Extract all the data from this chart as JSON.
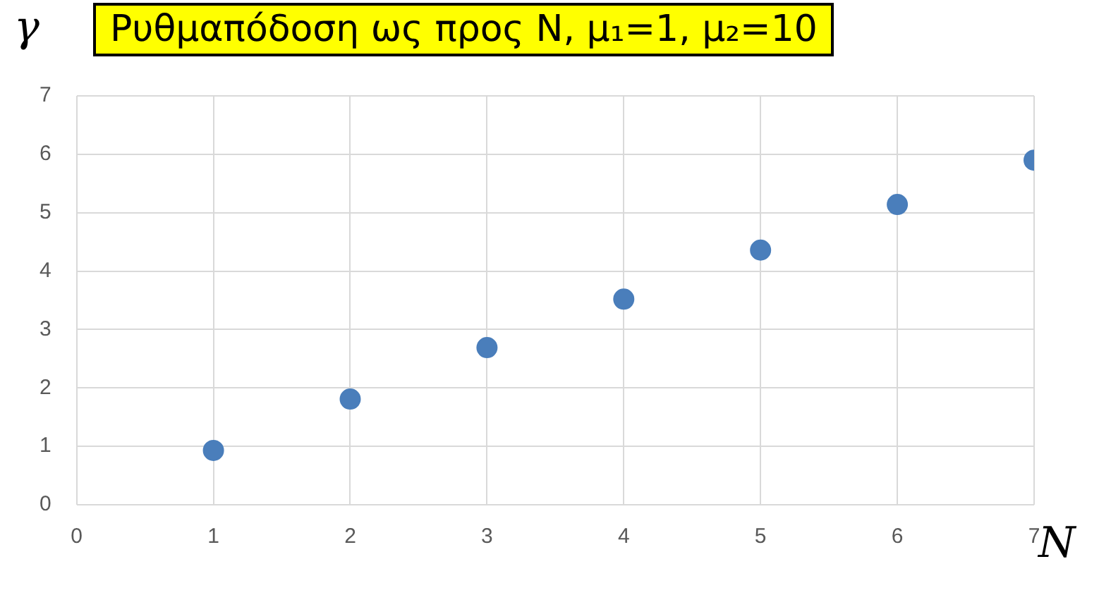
{
  "chart_data": {
    "type": "scatter",
    "title": "Ρυθμαπόδοση ως προς N, μ₁=1, μ₂=10",
    "xlabel": "N",
    "ylabel": "γ",
    "x": [
      1,
      2,
      3,
      4,
      5,
      6,
      7
    ],
    "series": [
      {
        "color": "#4a7ebb",
        "values": [
          0.93,
          1.81,
          2.69,
          3.52,
          4.36,
          5.14,
          5.9
        ]
      }
    ],
    "xlim": [
      0,
      7
    ],
    "ylim": [
      0,
      7
    ],
    "xticks": [
      0,
      1,
      2,
      3,
      4,
      5,
      6,
      7
    ],
    "yticks": [
      0,
      1,
      2,
      3,
      4,
      5,
      6,
      7
    ],
    "grid": true,
    "legend": false,
    "marker": "circle"
  }
}
